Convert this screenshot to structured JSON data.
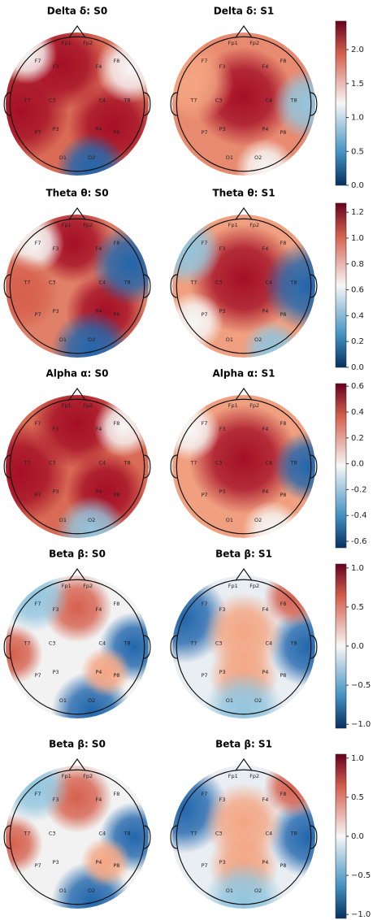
{
  "electrodes": [
    "Fp1",
    "Fp2",
    "F7",
    "F3",
    "F4",
    "F8",
    "T7",
    "C3",
    "C4",
    "T8",
    "P7",
    "P3",
    "P4",
    "P8",
    "O1",
    "O2"
  ],
  "chart_data": [
    {
      "type": "topomap",
      "titles": [
        "Delta δ: S0",
        "Delta δ: S1"
      ],
      "clim": [
        0,
        2.42
      ],
      "ticks": [
        {
          "value": 0,
          "label": "0.0"
        },
        {
          "value": 0.5,
          "label": "0.5"
        },
        {
          "value": 1,
          "label": "1.0"
        },
        {
          "value": 1.5,
          "label": "1.5"
        },
        {
          "value": 2,
          "label": "2.0"
        }
      ]
    },
    {
      "type": "topomap",
      "titles": [
        "Theta θ: S0",
        "Theta θ: S1"
      ],
      "clim": [
        0,
        1.27
      ],
      "ticks": [
        {
          "value": 0,
          "label": "0.0"
        },
        0.2,
        0.4,
        0.6,
        0.8,
        {
          "value": 1,
          "label": "1.0"
        },
        1.2
      ]
    },
    {
      "type": "topomap",
      "titles": [
        "Alpha α: S0",
        "Alpha α: S1"
      ],
      "clim": [
        -0.65,
        0.62
      ],
      "ticks": [
        -0.6,
        -0.4,
        -0.2,
        {
          "value": 0,
          "label": "0.0"
        },
        0.2,
        0.4,
        0.6
      ]
    },
    {
      "type": "topomap",
      "titles": [
        "Beta β: S0",
        "Beta β: S1"
      ],
      "clim": [
        -1.05,
        1.05
      ],
      "ticks": [
        {
          "value": -1,
          "label": "−1.0"
        },
        {
          "value": -0.5,
          "label": "−0.5"
        },
        {
          "value": 0,
          "label": "0.0"
        },
        0.5,
        {
          "value": 1,
          "label": "1.0"
        }
      ]
    },
    {
      "type": "topomap",
      "titles": [
        "Beta β: S0",
        "Beta β: S1"
      ],
      "clim": [
        -1.05,
        1.05
      ],
      "ticks": [
        {
          "value": -1,
          "label": "−1.0"
        },
        {
          "value": -0.5,
          "label": "−0.5"
        },
        {
          "value": 0,
          "label": "0.0"
        },
        0.5,
        {
          "value": 1,
          "label": "1.0"
        }
      ]
    }
  ]
}
